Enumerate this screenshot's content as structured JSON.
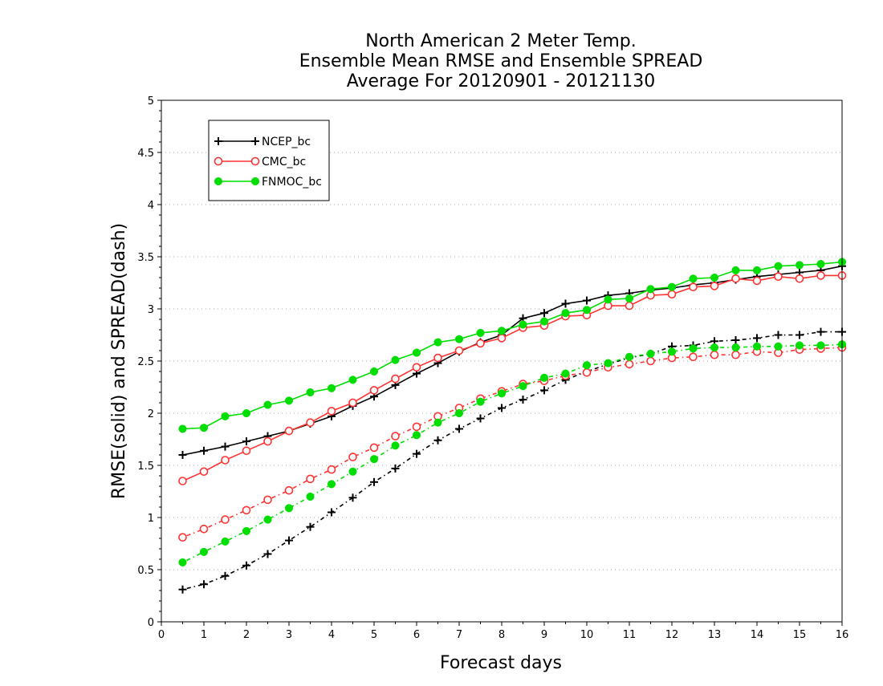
{
  "chart_data": {
    "type": "line",
    "title": [
      "North American 2 Meter Temp.",
      "Ensemble Mean RMSE and Ensemble SPREAD",
      "Average For 20120901 - 20121130"
    ],
    "xlabel": "Forecast days",
    "ylabel": "RMSE(solid) and SPREAD(dash)",
    "xlim": [
      0,
      16
    ],
    "ylim": [
      0,
      5
    ],
    "xticks": [
      "0",
      "1",
      "2",
      "3",
      "4",
      "5",
      "6",
      "7",
      "8",
      "9",
      "10",
      "11",
      "12",
      "13",
      "14",
      "15",
      "16"
    ],
    "yticks": [
      "0",
      "0.5",
      "1",
      "1.5",
      "2",
      "2.5",
      "3",
      "3.5",
      "4",
      "4.5",
      "5"
    ],
    "grid": "horizontal-dotted",
    "legend_position": "top-left",
    "x": [
      0.5,
      1,
      1.5,
      2,
      2.5,
      3,
      3.5,
      4,
      4.5,
      5,
      5.5,
      6,
      6.5,
      7,
      7.5,
      8,
      8.5,
      9,
      9.5,
      10,
      10.5,
      11,
      11.5,
      12,
      12.5,
      13,
      13.5,
      14,
      14.5,
      15,
      15.5,
      16
    ],
    "series": [
      {
        "name": "NCEP_bc",
        "color": "#000000",
        "marker": "plus",
        "rmse": [
          1.6,
          1.64,
          1.68,
          1.73,
          1.78,
          1.83,
          1.9,
          1.97,
          2.07,
          2.16,
          2.27,
          2.38,
          2.48,
          2.59,
          2.68,
          2.75,
          2.91,
          2.96,
          3.05,
          3.08,
          3.13,
          3.15,
          3.18,
          3.2,
          3.23,
          3.25,
          3.28,
          3.31,
          3.33,
          3.35,
          3.37,
          3.41
        ],
        "spread": [
          0.31,
          0.36,
          0.44,
          0.54,
          0.65,
          0.78,
          0.91,
          1.05,
          1.19,
          1.34,
          1.47,
          1.61,
          1.74,
          1.85,
          1.95,
          2.05,
          2.13,
          2.22,
          2.32,
          2.4,
          2.47,
          2.53,
          2.57,
          2.64,
          2.65,
          2.69,
          2.7,
          2.72,
          2.75,
          2.75,
          2.78,
          2.78
        ]
      },
      {
        "name": "CMC_bc",
        "color": "#ff3333",
        "marker": "open-circle",
        "rmse": [
          1.35,
          1.44,
          1.55,
          1.64,
          1.73,
          1.83,
          1.91,
          2.02,
          2.1,
          2.22,
          2.33,
          2.44,
          2.53,
          2.6,
          2.67,
          2.72,
          2.82,
          2.84,
          2.93,
          2.94,
          3.03,
          3.03,
          3.13,
          3.14,
          3.21,
          3.22,
          3.29,
          3.27,
          3.31,
          3.29,
          3.32,
          3.32
        ],
        "spread": [
          0.81,
          0.89,
          0.98,
          1.07,
          1.17,
          1.26,
          1.37,
          1.46,
          1.58,
          1.67,
          1.78,
          1.87,
          1.97,
          2.05,
          2.14,
          2.21,
          2.28,
          2.31,
          2.36,
          2.39,
          2.44,
          2.47,
          2.5,
          2.53,
          2.54,
          2.56,
          2.56,
          2.59,
          2.58,
          2.61,
          2.62,
          2.63
        ]
      },
      {
        "name": "FNMOC_bc",
        "color": "#00dd00",
        "marker": "filled-circle",
        "rmse": [
          1.85,
          1.86,
          1.97,
          2.0,
          2.08,
          2.12,
          2.2,
          2.24,
          2.32,
          2.4,
          2.51,
          2.58,
          2.68,
          2.71,
          2.77,
          2.79,
          2.85,
          2.88,
          2.96,
          2.99,
          3.09,
          3.1,
          3.19,
          3.21,
          3.29,
          3.3,
          3.37,
          3.37,
          3.41,
          3.42,
          3.43,
          3.45
        ],
        "spread": [
          0.57,
          0.67,
          0.77,
          0.87,
          0.98,
          1.09,
          1.2,
          1.32,
          1.44,
          1.56,
          1.69,
          1.79,
          1.91,
          2.0,
          2.11,
          2.19,
          2.26,
          2.34,
          2.38,
          2.46,
          2.48,
          2.54,
          2.57,
          2.59,
          2.62,
          2.63,
          2.63,
          2.64,
          2.64,
          2.65,
          2.65,
          2.66
        ]
      }
    ]
  }
}
